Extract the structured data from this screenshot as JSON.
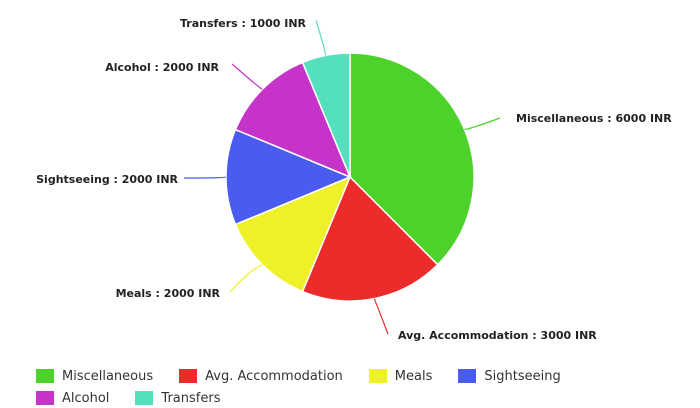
{
  "chart_data": {
    "type": "pie",
    "title": "",
    "unit": "INR",
    "series": [
      {
        "name": "Miscellaneous",
        "value": 6000,
        "color": "#4cd22a",
        "label": "Miscellaneous : 6000 INR",
        "label_side": "right"
      },
      {
        "name": "Avg. Accommodation",
        "value": 3000,
        "color": "#ec2b2b",
        "label": "Avg. Accommodation : 3000 INR",
        "label_side": "right"
      },
      {
        "name": "Meals",
        "value": 2000,
        "color": "#eef02a",
        "label": "Meals : 2000 INR",
        "label_side": "left"
      },
      {
        "name": "Sightseeing",
        "value": 2000,
        "color": "#4a5bf0",
        "label": "Sightseeing : 2000 INR",
        "label_side": "left"
      },
      {
        "name": "Alcohol",
        "value": 2000,
        "color": "#c533c8",
        "label": "Alcohol : 2000 INR",
        "label_side": "left"
      },
      {
        "name": "Transfers",
        "value": 1000,
        "color": "#55e0bd",
        "label": "Transfers : 1000 INR",
        "label_side": "left"
      }
    ],
    "legend_position": "bottom-left",
    "start_angle_deg": 0,
    "direction": "clockwise"
  }
}
